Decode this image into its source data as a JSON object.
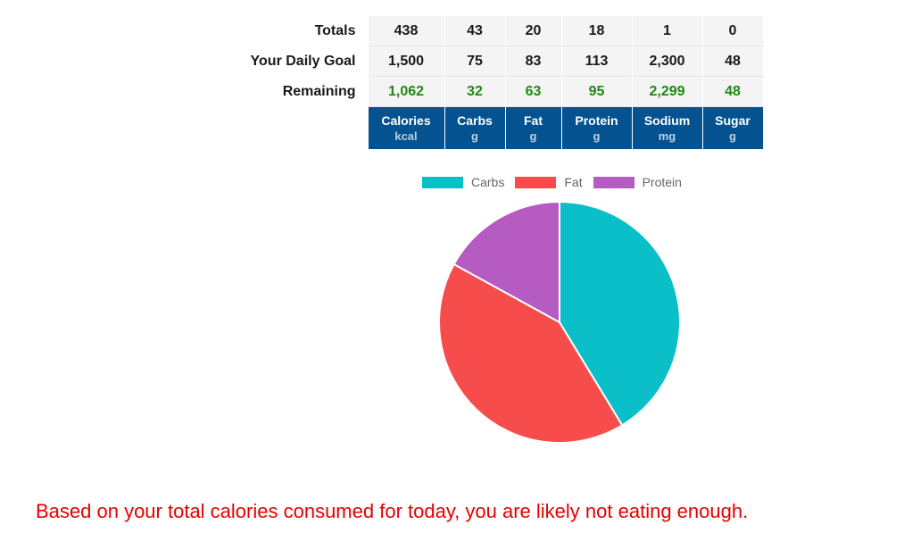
{
  "table": {
    "rows": [
      {
        "label": "Totals",
        "values": [
          "438",
          "43",
          "20",
          "18",
          "1",
          "0"
        ]
      },
      {
        "label": "Your Daily Goal",
        "values": [
          "1,500",
          "75",
          "83",
          "113",
          "2,300",
          "48"
        ]
      },
      {
        "label": "Remaining",
        "values": [
          "1,062",
          "32",
          "63",
          "95",
          "2,299",
          "48"
        ]
      }
    ],
    "columns": [
      {
        "name": "Calories",
        "unit": "kcal"
      },
      {
        "name": "Carbs",
        "unit": "g"
      },
      {
        "name": "Fat",
        "unit": "g"
      },
      {
        "name": "Protein",
        "unit": "g"
      },
      {
        "name": "Sodium",
        "unit": "mg"
      },
      {
        "name": "Sugar",
        "unit": "g"
      }
    ]
  },
  "chart_data": {
    "type": "pie",
    "categories": [
      "Carbs",
      "Fat",
      "Protein"
    ],
    "values": [
      41.3,
      41.7,
      17.0
    ],
    "colors": [
      "#0bbfc9",
      "#f64c4c",
      "#b65bc1"
    ],
    "legend": "top"
  },
  "message": {
    "text": "Based on your total calories consumed for today, you are likely not eating enough.",
    "color": "#e60000"
  }
}
